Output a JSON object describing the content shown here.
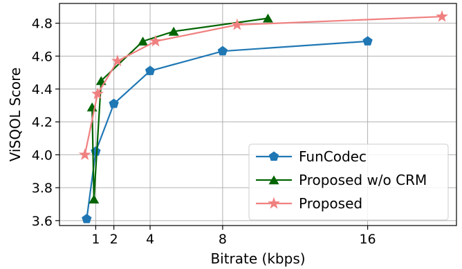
{
  "chart_data": {
    "type": "line",
    "xlabel": "Bitrate (kbps)",
    "ylabel": "ViSQOL Score",
    "xlim": [
      -1,
      20.9
    ],
    "ylim": [
      3.57,
      4.92
    ],
    "xticks": [
      1,
      2,
      4,
      8,
      16
    ],
    "xtick_labels": [
      "1",
      "2",
      "4",
      "8",
      "16"
    ],
    "yticks": [
      3.6,
      3.8,
      4.0,
      4.2,
      4.4,
      4.6,
      4.8
    ],
    "ytick_labels": [
      "3.6",
      "3.8",
      "4.0",
      "4.2",
      "4.4",
      "4.6",
      "4.8"
    ],
    "grid": true,
    "legend_position": "bottom-right",
    "series": [
      {
        "name": "FunCodec",
        "color": "#1f77b4",
        "marker": "pentagon",
        "x": [
          0.5,
          1.0,
          2.0,
          4.0,
          8.0,
          16.0
        ],
        "y": [
          3.61,
          4.02,
          4.31,
          4.51,
          4.63,
          4.69
        ]
      },
      {
        "name": "Proposed w/o CRM",
        "color": "#006400",
        "marker": "triangle",
        "x": [
          0.8,
          0.9,
          1.3,
          3.6,
          5.3,
          10.5
        ],
        "y": [
          4.29,
          3.73,
          4.45,
          4.69,
          4.75,
          4.83
        ]
      },
      {
        "name": "Proposed",
        "color": "#f08080",
        "marker": "star",
        "x": [
          0.4,
          1.1,
          2.2,
          4.3,
          8.8,
          20.1
        ],
        "y": [
          4.0,
          4.37,
          4.57,
          4.69,
          4.79,
          4.84
        ]
      }
    ]
  }
}
